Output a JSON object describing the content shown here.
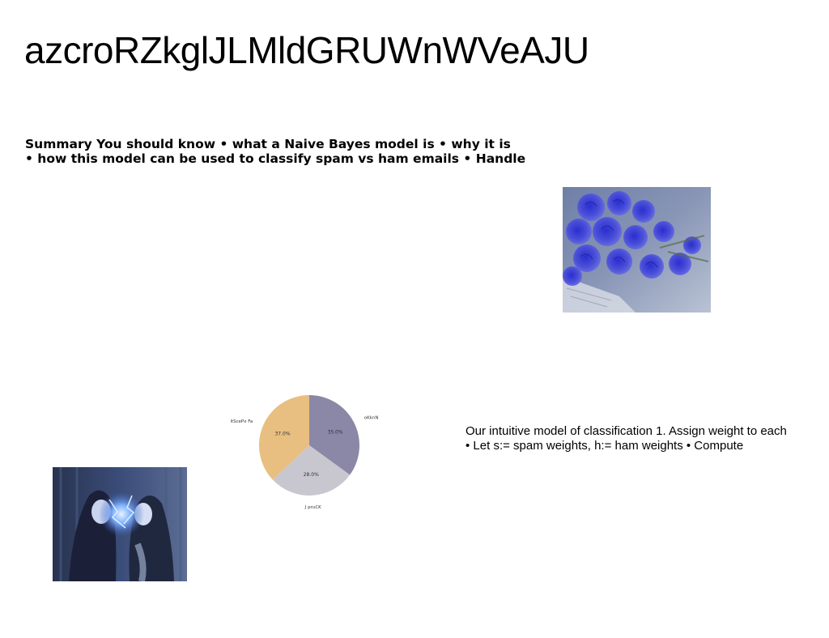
{
  "slide": {
    "title": "azcroRZkglJLMldGRUWnWVeAJU",
    "summary_lines": [
      "Summary You should know • what a Naive Bayes model is • why it is",
      "• how this model can be used to classify spam vs ham emails • Handle"
    ],
    "model_lines": [
      "Our intuitive model of classification 1. Assign weight to each",
      "• Let s:= spam weights, h:= ham weights • Compute"
    ]
  },
  "chart_data": {
    "type": "pie",
    "slices": [
      {
        "label": "oKknN",
        "value": 35.0,
        "display": "35.0%",
        "color": "#8b87a6"
      },
      {
        "label": "J pruCK",
        "value": 28.0,
        "display": "28.0%",
        "color": "#c8c6cf"
      },
      {
        "label": "ltScePx Fa",
        "value": 37.0,
        "display": "37.0%",
        "color": "#e8bf80"
      }
    ],
    "start_angle": "12 o'clock",
    "direction": "clockwise"
  }
}
